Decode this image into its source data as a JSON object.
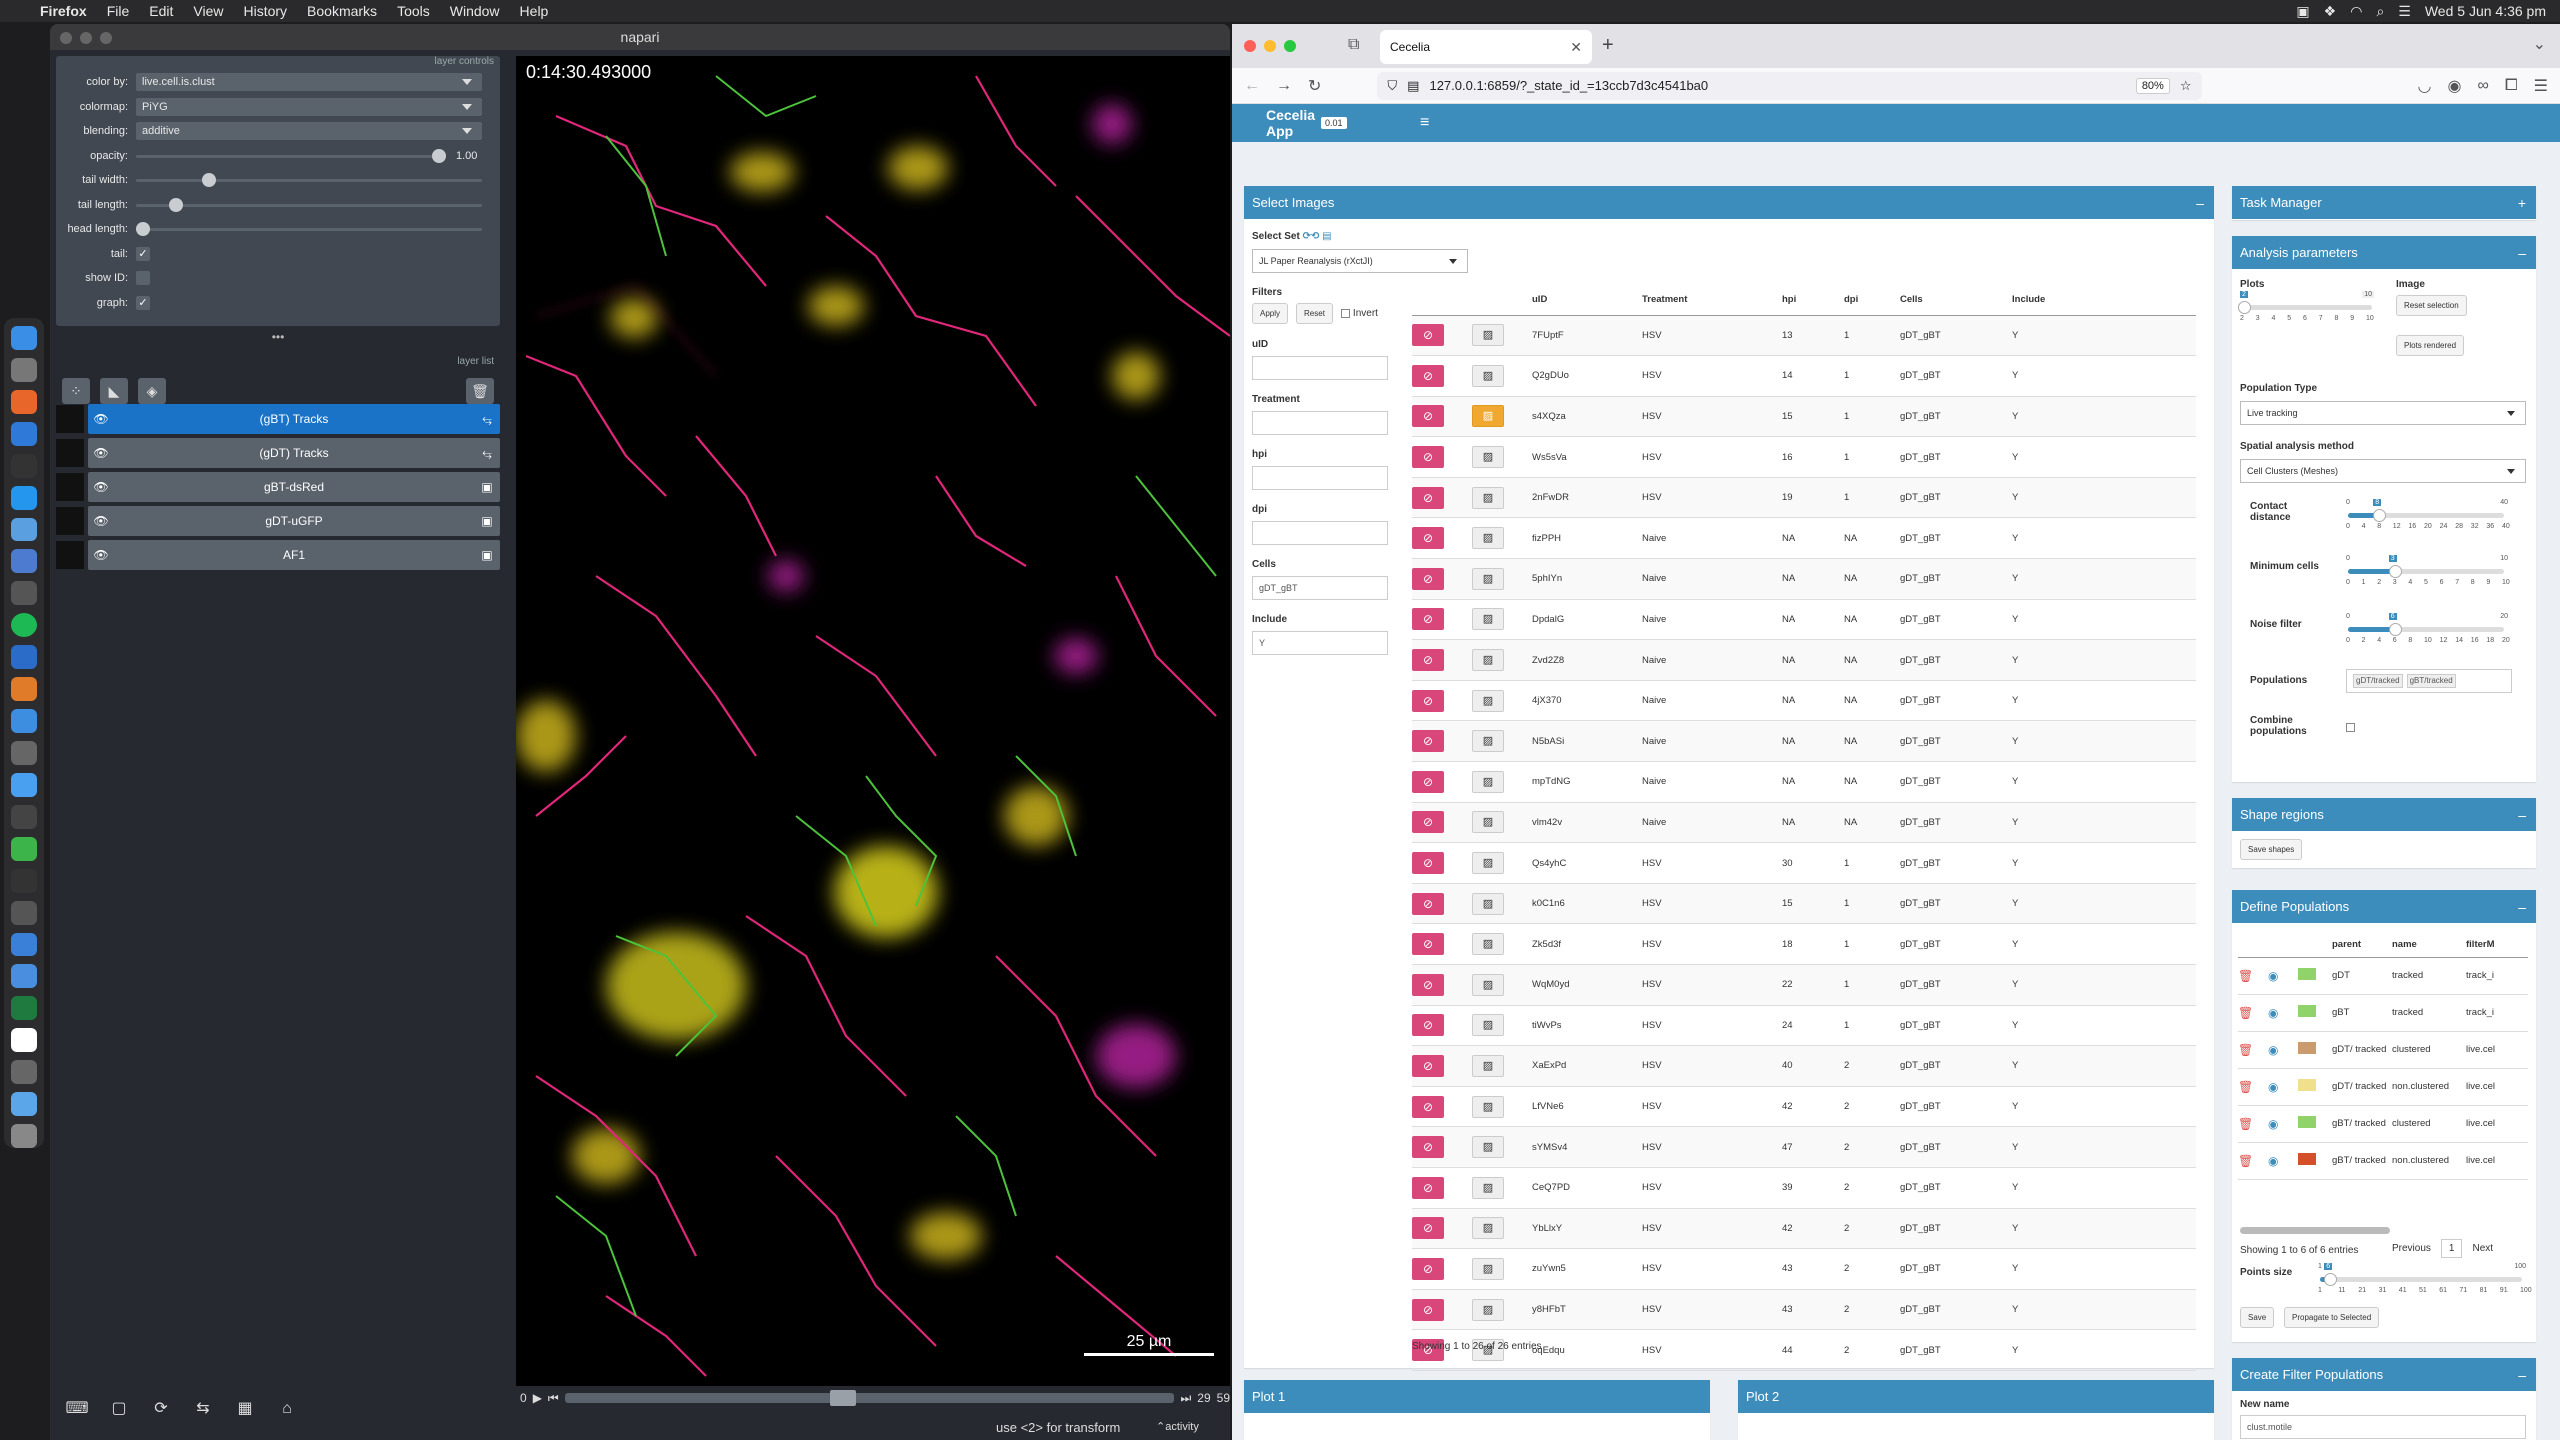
{
  "menubar": {
    "app": "Firefox",
    "items": [
      "File",
      "Edit",
      "View",
      "History",
      "Bookmarks",
      "Tools",
      "Window",
      "Help"
    ],
    "datetime": "Wed 5 Jun  4:36 pm"
  },
  "napari": {
    "title": "napari",
    "panel_header": "layer controls",
    "layer_list_header": "layer list",
    "controls": {
      "color_by_label": "color by:",
      "color_by_value": "live.cell.is.clust",
      "colormap_label": "colormap:",
      "colormap_value": "PiYG",
      "blending_label": "blending:",
      "blending_value": "additive",
      "opacity_label": "opacity:",
      "opacity_value": "1.00",
      "opacity_level": 1.0,
      "tail_width_label": "tail width:",
      "tail_width_level": 0.2,
      "tail_length_label": "tail length:",
      "tail_length_level": 0.1,
      "head_length_label": "head length:",
      "head_length_level": 0.0,
      "tail_label": "tail:",
      "tail_checked": true,
      "show_id_label": "show ID:",
      "show_id_checked": false,
      "graph_label": "graph:",
      "graph_checked": true
    },
    "layers": [
      {
        "name": "(gBT) Tracks",
        "type": "tracks",
        "active": true
      },
      {
        "name": "(gDT) Tracks",
        "type": "tracks",
        "active": false
      },
      {
        "name": "gBT-dsRed",
        "type": "image",
        "active": false
      },
      {
        "name": "gDT-uGFP",
        "type": "image",
        "active": false
      },
      {
        "name": "AF1",
        "type": "image",
        "active": false
      }
    ],
    "timestamp": "0:14:30.493000",
    "scale_bar": "25 µm",
    "dims": {
      "start": "0",
      "current": "29",
      "max": "59"
    },
    "status_hint": "use <2> for transform",
    "activity_label": "activity"
  },
  "browser": {
    "tab_title": "Cecelia",
    "url": "127.0.0.1:6859/?_state_id_=13ccb7d3c4541ba0",
    "zoom": "80%"
  },
  "app": {
    "name": "Cecelia App",
    "version": "0.01",
    "select_images": {
      "title": "Select Images",
      "select_set_label": "Select Set",
      "select_set_value": "JL Paper Reanalysis (rXctJI)",
      "filters_label": "Filters",
      "apply_label": "Apply",
      "reset_label": "Reset",
      "invert_label": "Invert",
      "filter_fields": [
        {
          "label": "uID",
          "value": ""
        },
        {
          "label": "Treatment",
          "value": ""
        },
        {
          "label": "hpi",
          "value": ""
        },
        {
          "label": "dpi",
          "value": ""
        },
        {
          "label": "Cells",
          "value": "gDT_gBT"
        },
        {
          "label": "Include",
          "value": "Y"
        }
      ],
      "columns": [
        "uID",
        "Treatment",
        "hpi",
        "dpi",
        "Cells",
        "Include"
      ],
      "rows": [
        [
          "7FUptF",
          "HSV",
          "13",
          "1",
          "gDT_gBT",
          "Y"
        ],
        [
          "Q2gDUo",
          "HSV",
          "14",
          "1",
          "gDT_gBT",
          "Y"
        ],
        [
          "s4XQza",
          "HSV",
          "15",
          "1",
          "gDT_gBT",
          "Y"
        ],
        [
          "Ws5sVa",
          "HSV",
          "16",
          "1",
          "gDT_gBT",
          "Y"
        ],
        [
          "2nFwDR",
          "HSV",
          "19",
          "1",
          "gDT_gBT",
          "Y"
        ],
        [
          "fizPPH",
          "Naive",
          "NA",
          "NA",
          "gDT_gBT",
          "Y"
        ],
        [
          "5phIYn",
          "Naive",
          "NA",
          "NA",
          "gDT_gBT",
          "Y"
        ],
        [
          "DpdalG",
          "Naive",
          "NA",
          "NA",
          "gDT_gBT",
          "Y"
        ],
        [
          "Zvd2Z8",
          "Naive",
          "NA",
          "NA",
          "gDT_gBT",
          "Y"
        ],
        [
          "4jX370",
          "Naive",
          "NA",
          "NA",
          "gDT_gBT",
          "Y"
        ],
        [
          "N5bASi",
          "Naive",
          "NA",
          "NA",
          "gDT_gBT",
          "Y"
        ],
        [
          "mpTdNG",
          "Naive",
          "NA",
          "NA",
          "gDT_gBT",
          "Y"
        ],
        [
          "vlm42v",
          "Naive",
          "NA",
          "NA",
          "gDT_gBT",
          "Y"
        ],
        [
          "Qs4yhC",
          "HSV",
          "30",
          "1",
          "gDT_gBT",
          "Y"
        ],
        [
          "k0C1n6",
          "HSV",
          "15",
          "1",
          "gDT_gBT",
          "Y"
        ],
        [
          "Zk5d3f",
          "HSV",
          "18",
          "1",
          "gDT_gBT",
          "Y"
        ],
        [
          "WqM0yd",
          "HSV",
          "22",
          "1",
          "gDT_gBT",
          "Y"
        ],
        [
          "tiWvPs",
          "HSV",
          "24",
          "1",
          "gDT_gBT",
          "Y"
        ],
        [
          "XaExPd",
          "HSV",
          "40",
          "2",
          "gDT_gBT",
          "Y"
        ],
        [
          "LfVNe6",
          "HSV",
          "42",
          "2",
          "gDT_gBT",
          "Y"
        ],
        [
          "sYMSv4",
          "HSV",
          "47",
          "2",
          "gDT_gBT",
          "Y"
        ],
        [
          "CeQ7PD",
          "HSV",
          "39",
          "2",
          "gDT_gBT",
          "Y"
        ],
        [
          "YbLlxY",
          "HSV",
          "42",
          "2",
          "gDT_gBT",
          "Y"
        ],
        [
          "zuYwn5",
          "HSV",
          "43",
          "2",
          "gDT_gBT",
          "Y"
        ],
        [
          "y8HFbT",
          "HSV",
          "43",
          "2",
          "gDT_gBT",
          "Y"
        ],
        [
          "oqEdqu",
          "HSV",
          "44",
          "2",
          "gDT_gBT",
          "Y"
        ]
      ],
      "active_row": 2,
      "footer": "Showing 1 to 26 of 26 entries"
    },
    "task_manager": {
      "title": "Task Manager"
    },
    "analysis": {
      "title": "Analysis parameters",
      "plots_label": "Plots",
      "plots_min": "2",
      "plots_max": "10",
      "plots_ticks": [
        "2",
        "3",
        "4",
        "5",
        "6",
        "7",
        "8",
        "9",
        "10"
      ],
      "image_label": "Image",
      "reset_selection": "Reset selection",
      "plots_rendered": "Plots rendered",
      "population_type_label": "Population Type",
      "population_type_value": "Live tracking",
      "spatial_method_label": "Spatial analysis method",
      "spatial_method_value": "Cell Clusters (Meshes)",
      "contact_label": "Contact distance",
      "contact_min": "0",
      "contact_max": "40",
      "contact_value": "8",
      "contact_ticks": [
        "0",
        "4",
        "8",
        "12",
        "16",
        "20",
        "24",
        "28",
        "32",
        "36",
        "40"
      ],
      "mincells_label": "Minimum cells",
      "mincells_min": "0",
      "mincells_max": "10",
      "mincells_value": "3",
      "mincells_ticks": [
        "0",
        "1",
        "2",
        "3",
        "4",
        "5",
        "6",
        "7",
        "8",
        "9",
        "10"
      ],
      "noise_label": "Noise filter",
      "noise_min": "0",
      "noise_max": "20",
      "noise_value": "6",
      "noise_ticks": [
        "0",
        "2",
        "4",
        "6",
        "8",
        "10",
        "12",
        "14",
        "16",
        "18",
        "20"
      ],
      "populations_label": "Populations",
      "populations_values": [
        "gDT/tracked",
        "gBT/tracked"
      ],
      "combine_label": "Combine populations"
    },
    "shape_regions": {
      "title": "Shape regions",
      "save_shapes": "Save shapes"
    },
    "define_populations": {
      "title": "Define Populations",
      "columns": [
        "parent",
        "name",
        "filterM"
      ],
      "rows": [
        {
          "parent": "gDT",
          "name": "tracked",
          "filter": "track_i",
          "color": "#8fd36a"
        },
        {
          "parent": "gBT",
          "name": "tracked",
          "filter": "track_i",
          "color": "#8fd36a"
        },
        {
          "parent": "gDT/ tracked",
          "name": "clustered",
          "filter": "live.cel",
          "color": "#c99b6e"
        },
        {
          "parent": "gDT/ tracked",
          "name": "non.clustered",
          "filter": "live.cel",
          "color": "#f0e08c"
        },
        {
          "parent": "gBT/ tracked",
          "name": "clustered",
          "filter": "live.cel",
          "color": "#8fd36a"
        },
        {
          "parent": "gBT/ tracked",
          "name": "non.clustered",
          "filter": "live.cel",
          "color": "#d4502a"
        }
      ],
      "footer": "Showing 1 to 6 of 6 entries",
      "previous": "Previous",
      "page": "1",
      "next": "Next",
      "points_size_label": "Points size",
      "points_min": "1",
      "points_max": "100",
      "points_value": "6",
      "points_ticks": [
        "1",
        "11",
        "21",
        "31",
        "41",
        "51",
        "61",
        "71",
        "81",
        "91",
        "100"
      ],
      "save_label": "Save",
      "propagate_label": "Propagate to Selected"
    },
    "create_filter": {
      "title": "Create Filter Populations",
      "new_name_label": "New name",
      "new_name_value": "clust.motile"
    },
    "plot1": {
      "title": "Plot 1"
    },
    "plot2": {
      "title": "Plot 2"
    }
  }
}
